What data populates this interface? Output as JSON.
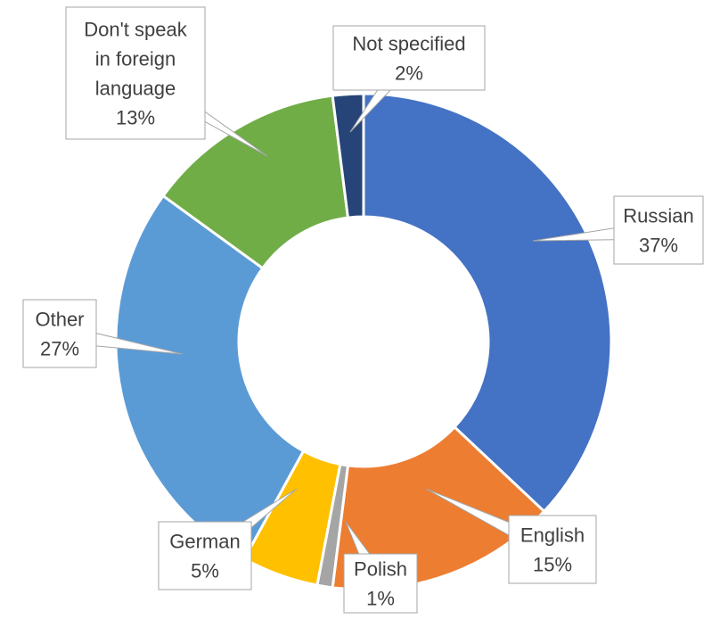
{
  "chart_data": {
    "type": "pie",
    "variant": "doughnut",
    "title": "",
    "data_labels_show": "category and percentage in callout boxes",
    "legend": "none",
    "slices": [
      {
        "label": "Russian",
        "label_lines": [
          "Russian"
        ],
        "value": 37,
        "value_label": "37%",
        "color": "#4472C4"
      },
      {
        "label": "English",
        "label_lines": [
          "English"
        ],
        "value": 15,
        "value_label": "15%",
        "color": "#ED7D31"
      },
      {
        "label": "Polish",
        "label_lines": [
          "Polish"
        ],
        "value": 1,
        "value_label": "1%",
        "color": "#A5A5A5"
      },
      {
        "label": "German",
        "label_lines": [
          "German"
        ],
        "value": 5,
        "value_label": "5%",
        "color": "#FFC000"
      },
      {
        "label": "Other",
        "label_lines": [
          "Other"
        ],
        "value": 27,
        "value_label": "27%",
        "color": "#5B9BD5"
      },
      {
        "label": "Don't speak in foreign language",
        "label_lines": [
          "Don't speak",
          "in foreign",
          "language"
        ],
        "value": 13,
        "value_label": "13%",
        "color": "#70AD47"
      },
      {
        "label": "Not specified",
        "label_lines": [
          "Not specified"
        ],
        "value": 2,
        "value_label": "2%",
        "color": "#264478"
      }
    ]
  }
}
